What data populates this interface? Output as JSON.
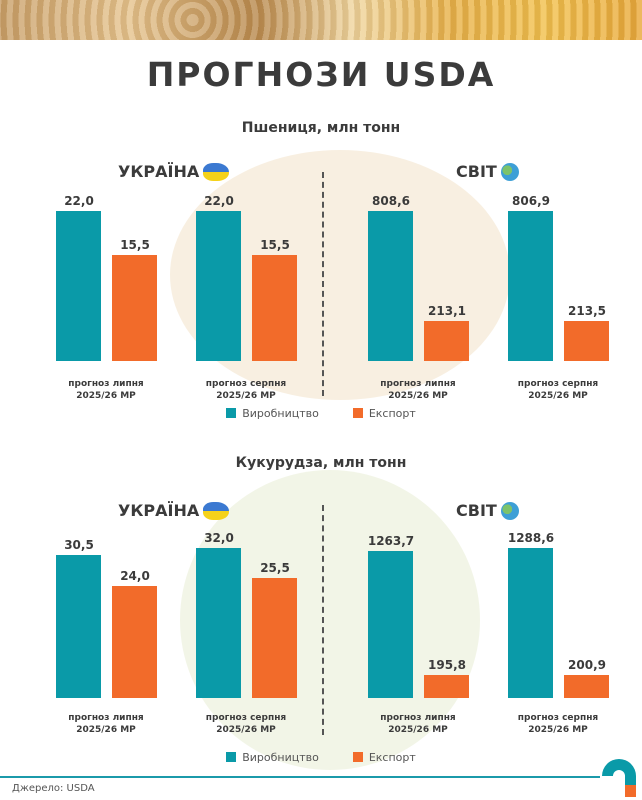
{
  "title": "ПРОГНОЗИ USDA",
  "colors": {
    "production": "#0a9aa8",
    "export": "#f26b2a",
    "accent": "#1b9aaa"
  },
  "legend": {
    "production": "Виробництво",
    "export": "Експорт"
  },
  "source": "Джерело: USDA",
  "chart_data": [
    {
      "type": "bar",
      "title": "Пшениця, млн тонн",
      "panels": [
        {
          "title": "УКРАЇНА",
          "icon": "ukraine-map-flag-icon",
          "categories": [
            "прогноз липня\n2025/26 МР",
            "прогноз серпня\n2025/26 МР"
          ],
          "series": [
            {
              "name": "Виробництво",
              "values": [
                22.0,
                22.0
              ],
              "labels": [
                "22,0",
                "22,0"
              ]
            },
            {
              "name": "Експорт",
              "values": [
                15.5,
                15.5
              ],
              "labels": [
                "15,5",
                "15,5"
              ]
            }
          ]
        },
        {
          "title": "СВІТ",
          "icon": "globe-icon",
          "categories": [
            "прогноз липня\n2025/26 МР",
            "прогноз серпня\n2025/26 МР"
          ],
          "series": [
            {
              "name": "Виробництво",
              "values": [
                808.6,
                806.9
              ],
              "labels": [
                "808,6",
                "806,9"
              ]
            },
            {
              "name": "Експорт",
              "values": [
                213.1,
                213.5
              ],
              "labels": [
                "213,1",
                "213,5"
              ]
            }
          ]
        }
      ]
    },
    {
      "type": "bar",
      "title": "Кукурудза, млн тонн",
      "panels": [
        {
          "title": "УКРАЇНА",
          "icon": "ukraine-map-flag-icon",
          "categories": [
            "прогноз липня\n2025/26 МР",
            "прогноз серпня\n2025/26 МР"
          ],
          "series": [
            {
              "name": "Виробництво",
              "values": [
                30.5,
                32.0
              ],
              "labels": [
                "30,5",
                "32,0"
              ]
            },
            {
              "name": "Експорт",
              "values": [
                24.0,
                25.5
              ],
              "labels": [
                "24,0",
                "25,5"
              ]
            }
          ]
        },
        {
          "title": "СВІТ",
          "icon": "globe-icon",
          "categories": [
            "прогноз липня\n2025/26 МР",
            "прогноз серпня\n2025/26 МР"
          ],
          "series": [
            {
              "name": "Виробництво",
              "values": [
                1263.7,
                1288.6
              ],
              "labels": [
                "1263,7",
                "1288,6"
              ]
            },
            {
              "name": "Експорт",
              "values": [
                195.8,
                200.9
              ],
              "labels": [
                "195,8",
                "200,9"
              ]
            }
          ]
        }
      ]
    }
  ]
}
